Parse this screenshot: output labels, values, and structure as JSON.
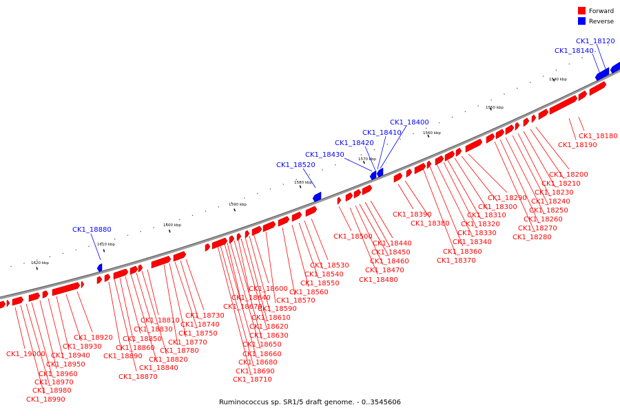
{
  "title": "Ruminococcus sp. SR1/5 draft genome. - 0..3545606",
  "legend": [
    {
      "label": "Forward",
      "color": "#ff0000"
    },
    {
      "label": "Reverse",
      "color": "#0000ff"
    }
  ],
  "colors": {
    "forward": "#ff0000",
    "reverse": "#0000ff",
    "backbone": "#888888",
    "tick": "#000000"
  },
  "scale_labels": [
    "1540 kbp",
    "1550 kbp",
    "1560 kbp",
    "1570 kbp",
    "1580 kbp",
    "1590 kbp",
    "1600 kbp",
    "1610 kbp",
    "1620 kbp"
  ],
  "forward_labels": [
    "CK1_18180",
    "CK1_18190",
    "CK1_18200",
    "CK1_18210",
    "CK1_18230",
    "CK1_18240",
    "CK1_18250",
    "CK1_18260",
    "CK1_18270",
    "CK1_18280",
    "CK1_18290",
    "CK1_18300",
    "CK1_18310",
    "CK1_18320",
    "CK1_18330",
    "CK1_18340",
    "CK1_18360",
    "CK1_18370",
    "CK1_18380",
    "CK1_18390",
    "CK1_18440",
    "CK1_18450",
    "CK1_18460",
    "CK1_18470",
    "CK1_18480",
    "CK1_18500",
    "CK1_18530",
    "CK1_18540",
    "CK1_18550",
    "CK1_18560",
    "CK1_18570",
    "CK1_18590",
    "CK1_18600",
    "CK1_18610",
    "CK1_18620",
    "CK1_18630",
    "CK1_18640",
    "CK1_18650",
    "CK1_18660",
    "CK1_18670",
    "CK1_18680",
    "CK1_18690",
    "CK1_18710",
    "CK1_18730",
    "CK1_18740",
    "CK1_18750",
    "CK1_18770",
    "CK1_18780",
    "CK1_18810",
    "CK1_18820",
    "CK1_18830",
    "CK1_18840",
    "CK1_18850",
    "CK1_18860",
    "CK1_18870",
    "CK1_18890",
    "CK1_18920",
    "CK1_18930",
    "CK1_18940",
    "CK1_18950",
    "CK1_18960",
    "CK1_18970",
    "CK1_18980",
    "CK1_18990",
    "CK1_19000"
  ],
  "reverse_labels": [
    "CK1_18120",
    "CK1_18140",
    "CK1_18400",
    "CK1_18410",
    "CK1_18420",
    "CK1_18430",
    "CK1_18520",
    "CK1_18880"
  ]
}
